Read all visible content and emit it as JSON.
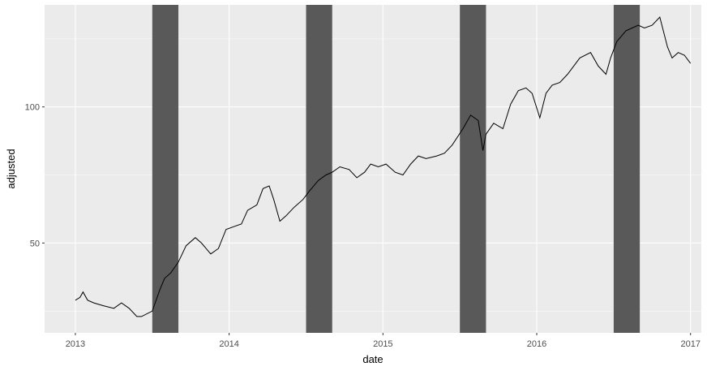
{
  "chart_data": {
    "type": "line",
    "title": "",
    "xlabel": "date",
    "ylabel": "adjusted",
    "x_ticks": [
      "2013",
      "2014",
      "2015",
      "2016",
      "2017"
    ],
    "y_ticks": [
      50,
      100
    ],
    "xlim": [
      2012.8,
      2017.07
    ],
    "ylim": [
      17.0,
      137.5
    ],
    "grid": true,
    "legend": "none",
    "background": "#ebebeb",
    "gridline_color": "#ffffff",
    "line_color": "#000000",
    "band_color": "#595959",
    "shaded_bands": [
      {
        "start": 2013.5,
        "end": 2013.67
      },
      {
        "start": 2014.5,
        "end": 2014.67
      },
      {
        "start": 2015.5,
        "end": 2015.67
      },
      {
        "start": 2016.5,
        "end": 2016.67
      }
    ],
    "series": [
      {
        "x": [
          2013.0,
          2013.03,
          2013.05,
          2013.08,
          2013.12,
          2013.18,
          2013.25,
          2013.3,
          2013.35,
          2013.4,
          2013.43,
          2013.5,
          2013.55,
          2013.58,
          2013.62,
          2013.67,
          2013.72,
          2013.78,
          2013.82,
          2013.88,
          2013.93,
          2013.98,
          2014.03,
          2014.08,
          2014.12,
          2014.18,
          2014.22,
          2014.26,
          2014.29,
          2014.33,
          2014.37,
          2014.42,
          2014.48,
          2014.52,
          2014.58,
          2014.63,
          2014.67,
          2014.72,
          2014.78,
          2014.83,
          2014.88,
          2014.92,
          2014.97,
          2015.02,
          2015.08,
          2015.13,
          2015.18,
          2015.23,
          2015.28,
          2015.35,
          2015.4,
          2015.45,
          2015.52,
          2015.57,
          2015.62,
          2015.65,
          2015.67,
          2015.72,
          2015.78,
          2015.83,
          2015.88,
          2015.93,
          2015.97,
          2016.02,
          2016.06,
          2016.1,
          2016.15,
          2016.2,
          2016.28,
          2016.35,
          2016.4,
          2016.45,
          2016.48,
          2016.52,
          2016.55,
          2016.58,
          2016.62,
          2016.66,
          2016.7,
          2016.75,
          2016.8,
          2016.85,
          2016.88,
          2016.92,
          2016.96,
          2017.0
        ],
        "values": [
          29,
          30,
          32,
          29,
          28,
          27,
          26,
          28,
          26,
          23,
          23,
          25,
          33,
          37,
          39,
          43,
          49,
          52,
          50,
          46,
          48,
          55,
          56,
          57,
          62,
          64,
          70,
          71,
          66,
          58,
          60,
          63,
          66,
          69,
          73,
          75,
          76,
          78,
          77,
          74,
          76,
          79,
          78,
          79,
          76,
          75,
          79,
          82,
          81,
          82,
          83,
          86,
          92,
          97,
          95,
          84,
          90,
          94,
          92,
          101,
          106,
          107,
          105,
          96,
          105,
          108,
          109,
          112,
          118,
          120,
          115,
          112,
          118,
          124,
          126,
          128,
          129,
          130,
          129,
          130,
          133,
          122,
          118,
          120,
          119,
          116
        ]
      }
    ]
  }
}
